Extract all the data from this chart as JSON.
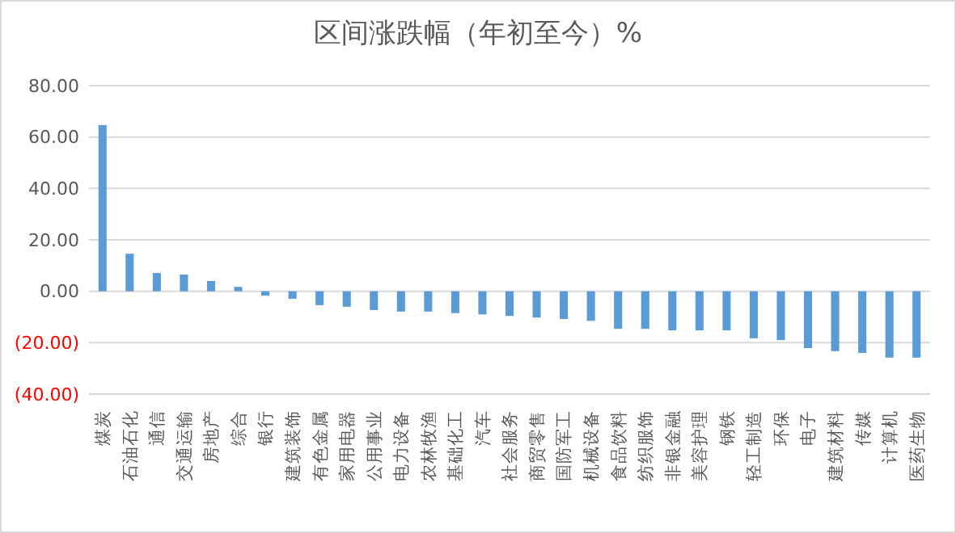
{
  "chart_data": {
    "type": "bar",
    "title": "区间涨跌幅（年初至今）%",
    "categories": [
      "煤炭",
      "石油石化",
      "通信",
      "交通运输",
      "房地产",
      "综合",
      "银行",
      "建筑装饰",
      "有色金属",
      "家用电器",
      "公用事业",
      "电力设备",
      "农林牧渔",
      "基础化工",
      "汽车",
      "社会服务",
      "商贸零售",
      "国防军工",
      "机械设备",
      "食品饮料",
      "纺织服饰",
      "非银金融",
      "美容护理",
      "钢铁",
      "轻工制造",
      "环保",
      "电子",
      "建筑材料",
      "传媒",
      "计算机",
      "医药生物"
    ],
    "values": [
      64.6,
      14.6,
      7.1,
      6.5,
      4.0,
      1.7,
      -1.7,
      -2.9,
      -5.4,
      -6.0,
      -7.3,
      -7.9,
      -7.9,
      -8.5,
      -9.0,
      -9.6,
      -10.2,
      -10.8,
      -11.5,
      -14.6,
      -14.6,
      -15.2,
      -15.2,
      -15.2,
      -18.3,
      -19.0,
      -22.1,
      -23.3,
      -24.0,
      -25.8,
      -25.8
    ],
    "color": "#5b9bd5",
    "ylim": [
      -40,
      80
    ],
    "yticks": [
      {
        "value": -40,
        "label": "(40.00)"
      },
      {
        "value": -20,
        "label": "(20.00)"
      },
      {
        "value": 0,
        "label": "0.00"
      },
      {
        "value": 20,
        "label": "20.00"
      },
      {
        "value": 40,
        "label": "40.00"
      },
      {
        "value": 60,
        "label": "60.00"
      },
      {
        "value": 80,
        "label": "80.00"
      }
    ],
    "grid": "y"
  }
}
